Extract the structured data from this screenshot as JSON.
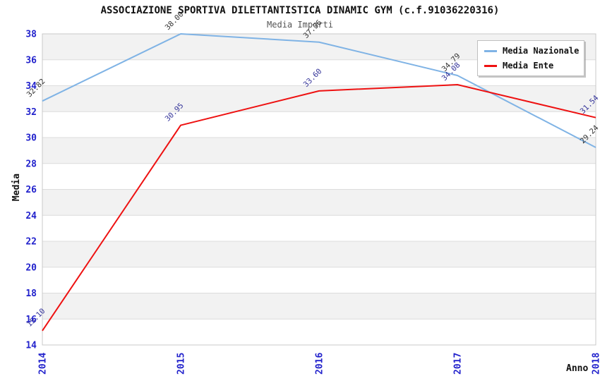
{
  "chart": {
    "title": "ASSOCIAZIONE SPORTIVA DILETTANTISTICA DINAMIC GYM (c.f.91036220316)",
    "subtitle": "Media Importi",
    "xlabel": "Anno",
    "ylabel": "Media"
  },
  "legend": {
    "items": [
      {
        "label": "Media Nazionale",
        "color": "#7FB3E5"
      },
      {
        "label": "Media Ente",
        "color": "#EE1111"
      }
    ]
  },
  "chart_data": {
    "type": "line",
    "title": "ASSOCIAZIONE SPORTIVA DILETTANTISTICA DINAMIC GYM (c.f.91036220316)",
    "subtitle": "Media Importi",
    "xlabel": "Anno",
    "ylabel": "Media",
    "categories": [
      "2014",
      "2015",
      "2016",
      "2017",
      "2018"
    ],
    "series": [
      {
        "name": "Media Nazionale",
        "color": "#7FB3E5",
        "label_color": "#333333",
        "values": [
          32.82,
          38.0,
          37.36,
          34.79,
          29.24
        ],
        "labels": [
          "32.82",
          "38.00",
          "37.36",
          "34.79",
          "29.24"
        ]
      },
      {
        "name": "Media Ente",
        "color": "#EE1111",
        "label_color": "#333399",
        "values": [
          15.1,
          30.95,
          33.6,
          34.08,
          31.54
        ],
        "labels": [
          "15.10",
          "30.95",
          "33.60",
          "34.08",
          "31.54"
        ]
      }
    ],
    "ylim": [
      14,
      38
    ],
    "ytick_step": 2,
    "grid": true,
    "legend_position": "top-right",
    "style": {
      "tick_color": "#2222CC",
      "band_color": "#F2F2F2",
      "grid_color": "#DCDCDC",
      "border_color": "#C9C9C9"
    }
  }
}
